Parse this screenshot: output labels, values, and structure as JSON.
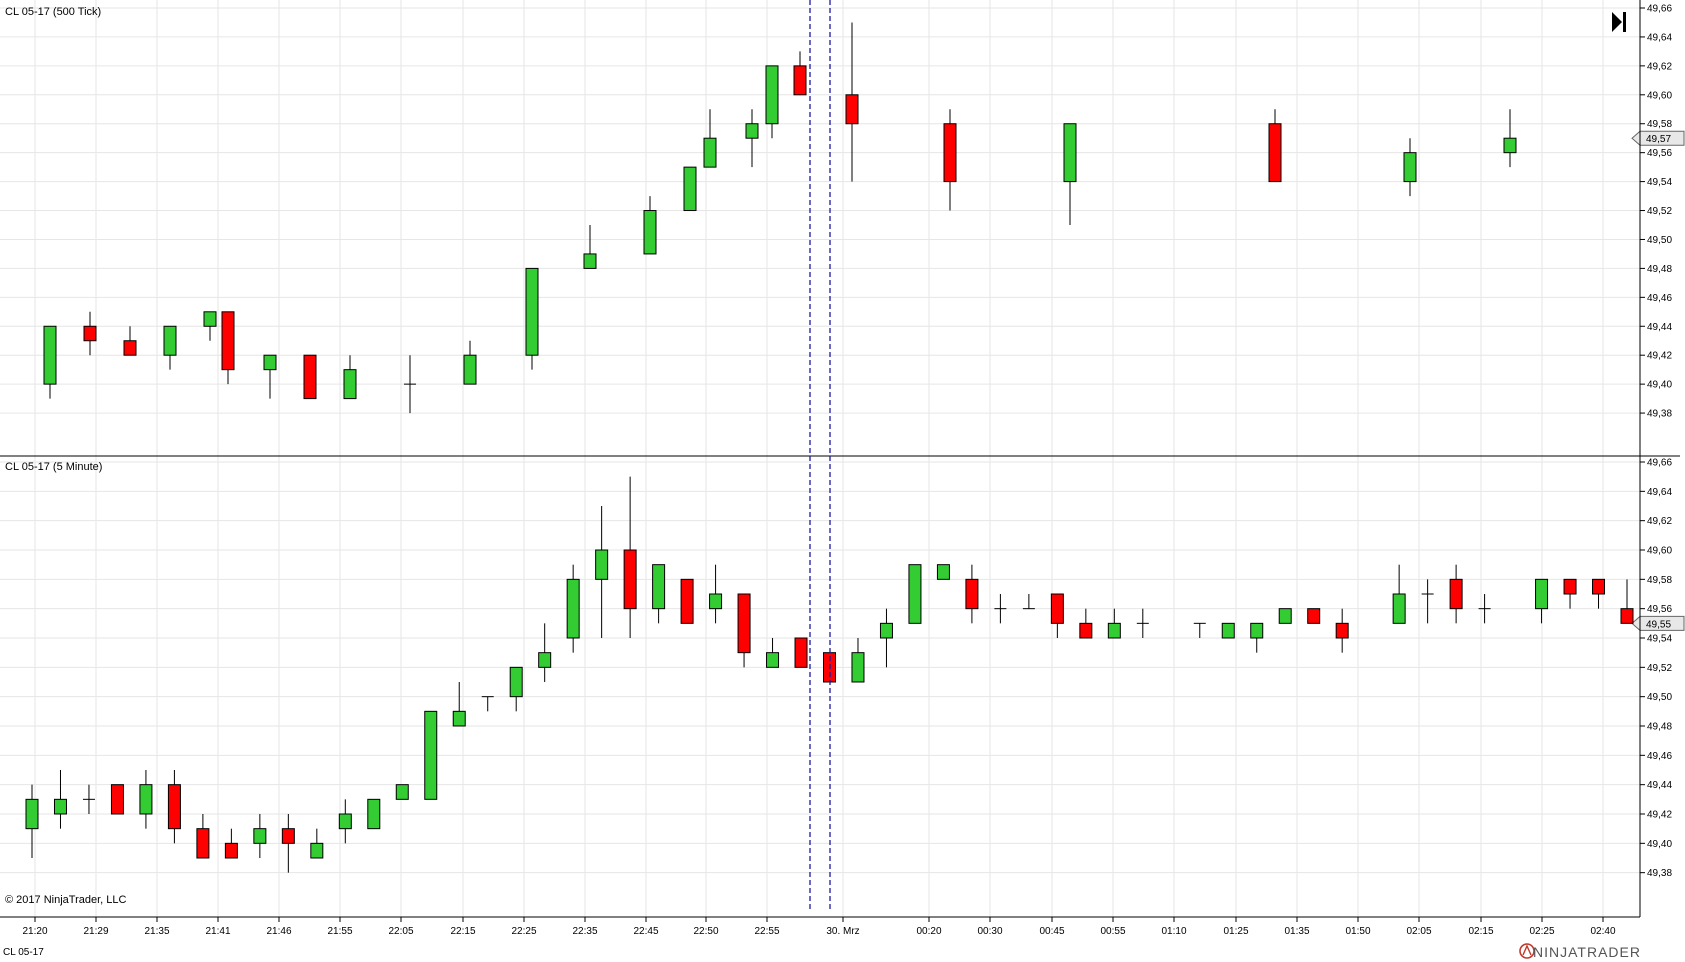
{
  "chart_data": [
    {
      "type": "candlestick",
      "title": "CL 05-17 (500 Tick)",
      "ylim": [
        49.36,
        49.66
      ],
      "yticks": [
        49.38,
        49.4,
        49.42,
        49.44,
        49.46,
        49.48,
        49.5,
        49.52,
        49.54,
        49.56,
        49.58,
        49.6,
        49.62,
        49.64,
        49.66
      ],
      "last_price": "49,57",
      "last_price_value": 49.57,
      "candles": [
        {
          "o": 49.4,
          "h": 49.44,
          "l": 49.39,
          "c": 49.44
        },
        {
          "o": 49.44,
          "h": 49.45,
          "l": 49.42,
          "c": 49.43
        },
        {
          "o": 49.43,
          "h": 49.44,
          "l": 49.42,
          "c": 49.42
        },
        {
          "o": 49.42,
          "h": 49.44,
          "l": 49.41,
          "c": 49.44
        },
        {
          "o": 49.44,
          "h": 49.45,
          "l": 49.43,
          "c": 49.45
        },
        {
          "o": 49.45,
          "h": 49.45,
          "l": 49.4,
          "c": 49.41
        },
        {
          "o": 49.41,
          "h": 49.42,
          "l": 49.39,
          "c": 49.42
        },
        {
          "o": 49.42,
          "h": 49.42,
          "l": 49.39,
          "c": 49.39
        },
        {
          "o": 49.39,
          "h": 49.42,
          "l": 49.39,
          "c": 49.41
        },
        {
          "o": 49.4,
          "h": 49.42,
          "l": 49.38,
          "c": 49.4
        },
        {
          "o": 49.4,
          "h": 49.43,
          "l": 49.4,
          "c": 49.42
        },
        {
          "o": 49.42,
          "h": 49.48,
          "l": 49.41,
          "c": 49.48
        },
        {
          "o": 49.48,
          "h": 49.51,
          "l": 49.48,
          "c": 49.49
        },
        {
          "o": 49.49,
          "h": 49.53,
          "l": 49.49,
          "c": 49.52
        },
        {
          "o": 49.52,
          "h": 49.55,
          "l": 49.52,
          "c": 49.55
        },
        {
          "o": 49.55,
          "h": 49.59,
          "l": 49.55,
          "c": 49.57
        },
        {
          "o": 49.57,
          "h": 49.59,
          "l": 49.55,
          "c": 49.58
        },
        {
          "o": 49.58,
          "h": 49.62,
          "l": 49.57,
          "c": 49.62
        },
        {
          "o": 49.62,
          "h": 49.63,
          "l": 49.6,
          "c": 49.6
        },
        {
          "o": 49.6,
          "h": 49.65,
          "l": 49.54,
          "c": 49.58
        },
        {
          "o": 49.58,
          "h": 49.59,
          "l": 49.52,
          "c": 49.54
        },
        {
          "o": 49.54,
          "h": 49.58,
          "l": 49.51,
          "c": 49.58
        },
        {
          "o": 49.58,
          "h": 49.59,
          "l": 49.54,
          "c": 49.54
        },
        {
          "o": 49.54,
          "h": 49.57,
          "l": 49.53,
          "c": 49.56
        },
        {
          "o": 49.56,
          "h": 49.59,
          "l": 49.55,
          "c": 49.57
        }
      ]
    },
    {
      "type": "candlestick",
      "title": "CL 05-17 (5 Minute)",
      "ylim": [
        49.36,
        49.66
      ],
      "yticks": [
        49.38,
        49.4,
        49.42,
        49.44,
        49.46,
        49.48,
        49.5,
        49.52,
        49.54,
        49.56,
        49.58,
        49.6,
        49.62,
        49.64,
        49.66
      ],
      "last_price": "49,55",
      "last_price_value": 49.55,
      "candles": [
        {
          "o": 49.41,
          "h": 49.44,
          "l": 49.39,
          "c": 49.43
        },
        {
          "o": 49.42,
          "h": 49.45,
          "l": 49.41,
          "c": 49.43
        },
        {
          "o": 49.43,
          "h": 49.44,
          "l": 49.42,
          "c": 49.43
        },
        {
          "o": 49.44,
          "h": 49.44,
          "l": 49.42,
          "c": 49.42
        },
        {
          "o": 49.42,
          "h": 49.45,
          "l": 49.41,
          "c": 49.44
        },
        {
          "o": 49.44,
          "h": 49.45,
          "l": 49.4,
          "c": 49.41
        },
        {
          "o": 49.41,
          "h": 49.42,
          "l": 49.39,
          "c": 49.39
        },
        {
          "o": 49.4,
          "h": 49.41,
          "l": 49.39,
          "c": 49.39
        },
        {
          "o": 49.4,
          "h": 49.42,
          "l": 49.39,
          "c": 49.41
        },
        {
          "o": 49.41,
          "h": 49.42,
          "l": 49.38,
          "c": 49.4
        },
        {
          "o": 49.39,
          "h": 49.41,
          "l": 49.39,
          "c": 49.4
        },
        {
          "o": 49.41,
          "h": 49.43,
          "l": 49.4,
          "c": 49.42
        },
        {
          "o": 49.41,
          "h": 49.43,
          "l": 49.41,
          "c": 49.43
        },
        {
          "o": 49.43,
          "h": 49.44,
          "l": 49.43,
          "c": 49.44
        },
        {
          "o": 49.43,
          "h": 49.49,
          "l": 49.43,
          "c": 49.49
        },
        {
          "o": 49.48,
          "h": 49.51,
          "l": 49.48,
          "c": 49.49
        },
        {
          "o": 49.5,
          "h": 49.5,
          "l": 49.49,
          "c": 49.5
        },
        {
          "o": 49.5,
          "h": 49.52,
          "l": 49.49,
          "c": 49.52
        },
        {
          "o": 49.52,
          "h": 49.55,
          "l": 49.51,
          "c": 49.53
        },
        {
          "o": 49.54,
          "h": 49.59,
          "l": 49.53,
          "c": 49.58
        },
        {
          "o": 49.58,
          "h": 49.63,
          "l": 49.54,
          "c": 49.6
        },
        {
          "o": 49.6,
          "h": 49.65,
          "l": 49.54,
          "c": 49.56
        },
        {
          "o": 49.56,
          "h": 49.59,
          "l": 49.55,
          "c": 49.59
        },
        {
          "o": 49.58,
          "h": 49.58,
          "l": 49.55,
          "c": 49.55
        },
        {
          "o": 49.56,
          "h": 49.59,
          "l": 49.55,
          "c": 49.57
        },
        {
          "o": 49.57,
          "h": 49.57,
          "l": 49.52,
          "c": 49.53
        },
        {
          "o": 49.52,
          "h": 49.54,
          "l": 49.52,
          "c": 49.53
        },
        {
          "o": 49.54,
          "h": 49.54,
          "l": 49.52,
          "c": 49.52
        },
        {
          "o": 49.53,
          "h": 49.53,
          "l": 49.51,
          "c": 49.51
        },
        {
          "o": 49.51,
          "h": 49.54,
          "l": 49.51,
          "c": 49.53
        },
        {
          "o": 49.54,
          "h": 49.56,
          "l": 49.52,
          "c": 49.55
        },
        {
          "o": 49.55,
          "h": 49.59,
          "l": 49.55,
          "c": 49.59
        },
        {
          "o": 49.58,
          "h": 49.59,
          "l": 49.58,
          "c": 49.59
        },
        {
          "o": 49.58,
          "h": 49.59,
          "l": 49.55,
          "c": 49.56
        },
        {
          "o": 49.56,
          "h": 49.57,
          "l": 49.55,
          "c": 49.56
        },
        {
          "o": 49.56,
          "h": 49.57,
          "l": 49.56,
          "c": 49.56
        },
        {
          "o": 49.57,
          "h": 49.57,
          "l": 49.54,
          "c": 49.55
        },
        {
          "o": 49.55,
          "h": 49.56,
          "l": 49.54,
          "c": 49.54
        },
        {
          "o": 49.54,
          "h": 49.56,
          "l": 49.54,
          "c": 49.55
        },
        {
          "o": 49.55,
          "h": 49.56,
          "l": 49.54,
          "c": 49.55
        },
        null,
        {
          "o": 49.55,
          "h": 49.55,
          "l": 49.54,
          "c": 49.55
        },
        {
          "o": 49.54,
          "h": 49.55,
          "l": 49.54,
          "c": 49.55
        },
        {
          "o": 49.54,
          "h": 49.55,
          "l": 49.53,
          "c": 49.55
        },
        {
          "o": 49.55,
          "h": 49.56,
          "l": 49.55,
          "c": 49.56
        },
        {
          "o": 49.56,
          "h": 49.56,
          "l": 49.55,
          "c": 49.55
        },
        {
          "o": 49.55,
          "h": 49.56,
          "l": 49.53,
          "c": 49.54
        },
        null,
        {
          "o": 49.55,
          "h": 49.59,
          "l": 49.55,
          "c": 49.57
        },
        {
          "o": 49.57,
          "h": 49.58,
          "l": 49.55,
          "c": 49.57
        },
        {
          "o": 49.58,
          "h": 49.59,
          "l": 49.55,
          "c": 49.56
        },
        {
          "o": 49.56,
          "h": 49.57,
          "l": 49.55,
          "c": 49.56
        },
        null,
        {
          "o": 49.56,
          "h": 49.58,
          "l": 49.55,
          "c": 49.58
        },
        {
          "o": 49.58,
          "h": 49.58,
          "l": 49.56,
          "c": 49.57
        },
        {
          "o": 49.58,
          "h": 49.58,
          "l": 49.56,
          "c": 49.57
        },
        {
          "o": 49.56,
          "h": 49.58,
          "l": 49.55,
          "c": 49.55
        }
      ]
    }
  ],
  "x_axis": {
    "ticks": [
      "21:20",
      "21:29",
      "21:35",
      "21:41",
      "21:46",
      "21:55",
      "22:05",
      "22:15",
      "22:25",
      "22:35",
      "22:45",
      "22:50",
      "22:55",
      "30. Mrz",
      "00:20",
      "00:30",
      "00:45",
      "00:55",
      "01:10",
      "01:25",
      "01:35",
      "01:50",
      "02:05",
      "02:15",
      "02:25",
      "02:40"
    ]
  },
  "footer": {
    "copyright": "© 2017 NinjaTrader, LLC",
    "tab": "CL 05-17",
    "brand": "NINJATRADER"
  },
  "colors": {
    "up": "#33cc33",
    "down": "#ff0000",
    "separator": "#1a1aa6"
  },
  "icons": {
    "scroll_end": "skip-to-end-icon",
    "logo": "ninjatrader-logo-icon"
  }
}
